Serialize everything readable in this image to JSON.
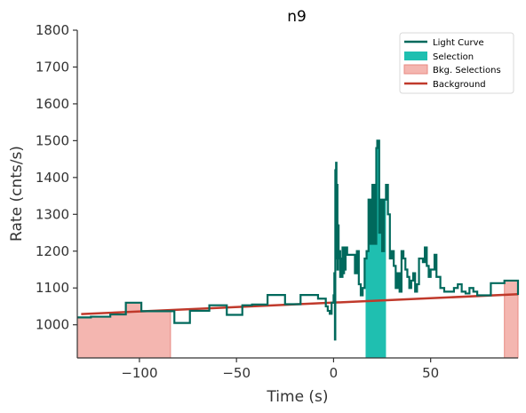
{
  "chart_data": {
    "type": "line",
    "title": "n9",
    "xlabel": "Time (s)",
    "ylabel": "Rate (cnts/s)",
    "xlim": [
      -132,
      95
    ],
    "ylim": [
      910,
      1800
    ],
    "xticks": [
      -100,
      -50,
      0,
      50
    ],
    "xtick_labels": [
      "−100",
      "−50",
      "0",
      "50"
    ],
    "yticks": [
      1000,
      1100,
      1200,
      1300,
      1400,
      1500,
      1600,
      1700,
      1800
    ],
    "ytick_labels": [
      "1000",
      "1100",
      "1200",
      "1300",
      "1400",
      "1500",
      "1600",
      "1700",
      "1800"
    ],
    "grid": false,
    "legend_position": "top-right",
    "legend": [
      {
        "label": "Light Curve",
        "kind": "line",
        "color": "#00695c"
      },
      {
        "label": "Selection",
        "kind": "patch",
        "color": "#1fbfb0"
      },
      {
        "label": "Bkg. Selections",
        "kind": "patch",
        "color": "#f4b6b0",
        "edge": "#e88a82"
      },
      {
        "label": "Background",
        "kind": "line",
        "color": "#c0392b"
      }
    ],
    "series": [
      {
        "name": "Light Curve",
        "color": "#00695c",
        "drawstyle": "steps-post",
        "points": [
          [
            -132,
            1020
          ],
          [
            -125,
            1022
          ],
          [
            -115,
            1028
          ],
          [
            -107,
            1060
          ],
          [
            -99,
            1037
          ],
          [
            -82,
            1005
          ],
          [
            -74,
            1038
          ],
          [
            -64,
            1053
          ],
          [
            -55,
            1027
          ],
          [
            -47,
            1053
          ],
          [
            -42,
            1055
          ],
          [
            -34,
            1081
          ],
          [
            -25,
            1056
          ],
          [
            -17,
            1081
          ],
          [
            -8,
            1071
          ],
          [
            -4,
            1050
          ],
          [
            -3,
            1038
          ],
          [
            -2,
            1030
          ],
          [
            -1,
            1060
          ],
          [
            0,
            1080
          ],
          [
            0.4,
            1140
          ],
          [
            0.7,
            960
          ],
          [
            0.9,
            1420
          ],
          [
            1.1,
            1190
          ],
          [
            1.3,
            1440
          ],
          [
            1.5,
            1180
          ],
          [
            1.7,
            1380
          ],
          [
            2.0,
            1150
          ],
          [
            2.3,
            1270
          ],
          [
            2.6,
            1180
          ],
          [
            3.0,
            1200
          ],
          [
            3.4,
            1130
          ],
          [
            3.8,
            1180
          ],
          [
            4.2,
            1130
          ],
          [
            4.6,
            1210
          ],
          [
            5.0,
            1140
          ],
          [
            5.4,
            1210
          ],
          [
            5.8,
            1150
          ],
          [
            6.2,
            1210
          ],
          [
            7,
            1190
          ],
          [
            11,
            1140
          ],
          [
            12,
            1200
          ],
          [
            13,
            1110
          ],
          [
            14,
            1080
          ],
          [
            15,
            1100
          ],
          [
            16,
            1180
          ],
          [
            17,
            1200
          ],
          [
            18,
            1340
          ],
          [
            19,
            1220
          ],
          [
            20,
            1380
          ],
          [
            21,
            1220
          ],
          [
            22,
            1480
          ],
          [
            22.5,
            1500
          ],
          [
            23.5,
            1250
          ],
          [
            24,
            1340
          ],
          [
            25,
            1200
          ],
          [
            26,
            1340
          ],
          [
            27,
            1380
          ],
          [
            28,
            1300
          ],
          [
            29,
            1180
          ],
          [
            30,
            1200
          ],
          [
            31,
            1160
          ],
          [
            32,
            1100
          ],
          [
            33,
            1140
          ],
          [
            34,
            1090
          ],
          [
            35,
            1200
          ],
          [
            36,
            1180
          ],
          [
            37,
            1150
          ],
          [
            38,
            1130
          ],
          [
            39,
            1100
          ],
          [
            40,
            1120
          ],
          [
            41,
            1140
          ],
          [
            42,
            1090
          ],
          [
            43,
            1110
          ],
          [
            44,
            1180
          ],
          [
            46,
            1170
          ],
          [
            47,
            1210
          ],
          [
            48,
            1160
          ],
          [
            49,
            1130
          ],
          [
            50,
            1150
          ],
          [
            52,
            1190
          ],
          [
            53,
            1130
          ],
          [
            55,
            1100
          ],
          [
            57,
            1090
          ],
          [
            62,
            1100
          ],
          [
            64,
            1110
          ],
          [
            66,
            1090
          ],
          [
            68,
            1085
          ],
          [
            70,
            1100
          ],
          [
            72,
            1090
          ],
          [
            74,
            1080
          ],
          [
            81,
            1113
          ],
          [
            88,
            1120
          ],
          [
            95,
            1081
          ]
        ]
      },
      {
        "name": "Background",
        "color": "#c0392b",
        "points": [
          [
            -130,
            1029
          ],
          [
            95,
            1083
          ]
        ]
      }
    ],
    "selections": [
      {
        "name": "Selection",
        "x0": 16.5,
        "x1": 27,
        "curve": "Light Curve",
        "color": "#1fbfb0"
      }
    ],
    "bkg_selections": [
      {
        "name": "Bkg. Selections",
        "x0": -132,
        "x1": -84,
        "curve": "Light Curve",
        "color": "#f4b6b0",
        "edge": "#e88a82"
      },
      {
        "name": "Bkg. Selections",
        "x0": 88,
        "x1": 95,
        "curve": "Light Curve",
        "color": "#f4b6b0",
        "edge": "#e88a82"
      }
    ]
  }
}
